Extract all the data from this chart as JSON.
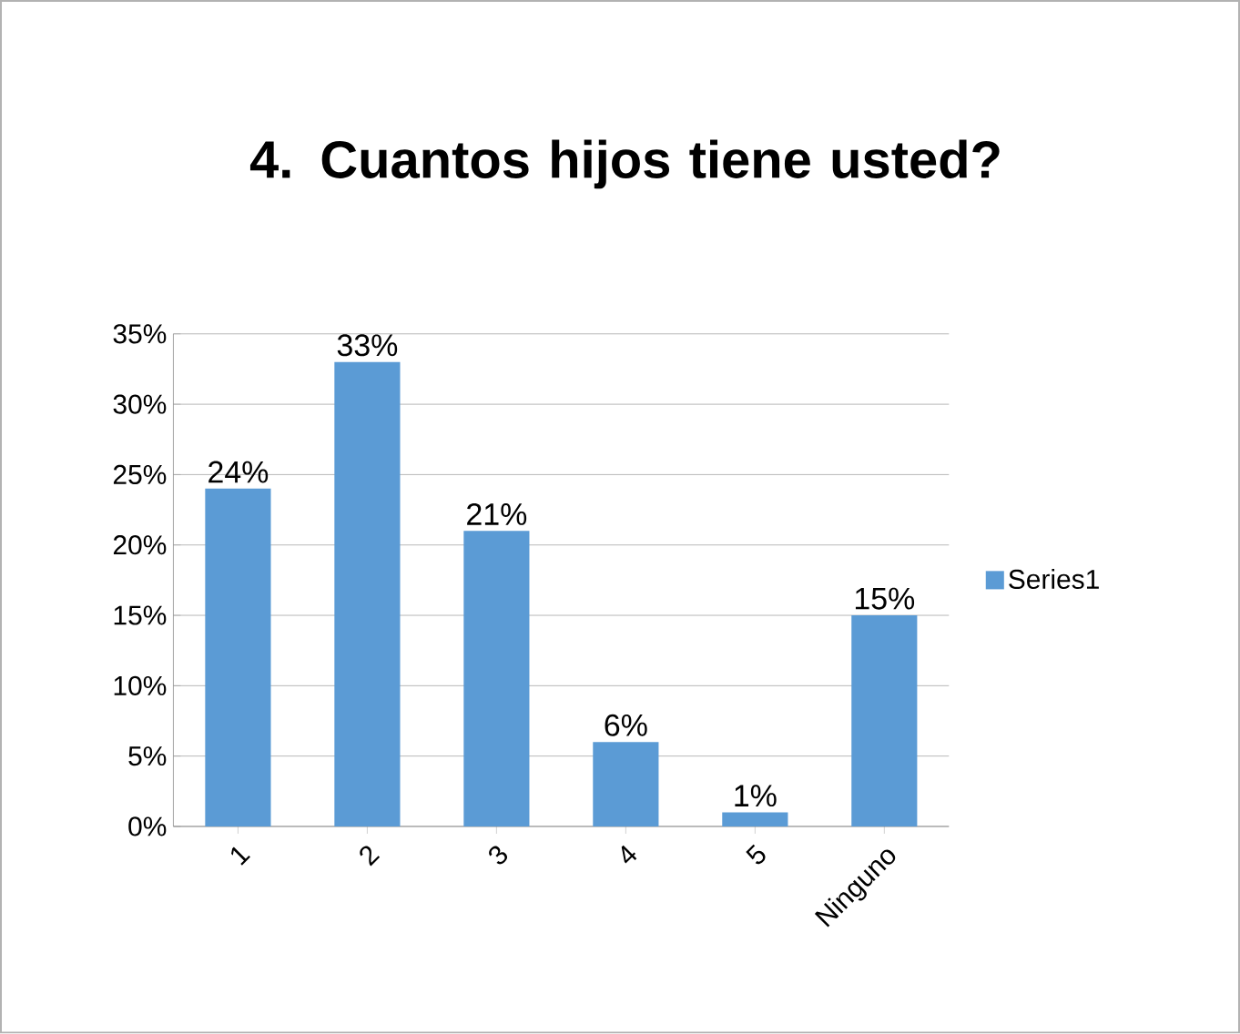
{
  "chart_data": {
    "type": "bar",
    "title": "4. Cuantos hijos tiene usted?",
    "categories": [
      "1",
      "2",
      "3",
      "4",
      "5",
      "Ninguno"
    ],
    "series": [
      {
        "name": "Series1",
        "color": "#5b9bd5",
        "values": [
          24,
          33,
          21,
          6,
          1,
          15
        ],
        "value_labels": [
          "24%",
          "33%",
          "21%",
          "6%",
          "1%",
          "15%"
        ]
      }
    ],
    "ylim": [
      0,
      35
    ],
    "yticks": [
      {
        "value": 0,
        "label": "0%"
      },
      {
        "value": 5,
        "label": "5%"
      },
      {
        "value": 10,
        "label": "10%"
      },
      {
        "value": 15,
        "label": "15%"
      },
      {
        "value": 20,
        "label": "20%"
      },
      {
        "value": 25,
        "label": "25%"
      },
      {
        "value": 30,
        "label": "30%"
      },
      {
        "value": 35,
        "label": "35%"
      }
    ],
    "grid": "y",
    "legend": "right"
  }
}
